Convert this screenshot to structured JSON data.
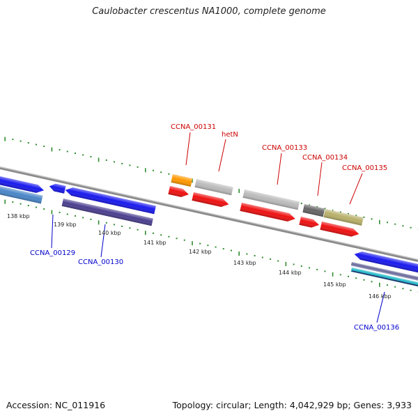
{
  "title": "Caulobacter crescentus NA1000, complete genome",
  "footer": {
    "accession": "Accession: NC_011916",
    "topology": "Topology: circular; Length: 4,042,929 bp; Genes: 3,933"
  },
  "scale_labels": [
    "138 kbp",
    "139 kbp",
    "140 kbp",
    "141 kbp",
    "142 kbp",
    "143 kbp",
    "144 kbp",
    "145 kbp",
    "146 kbp"
  ],
  "colors": {
    "forward_label": "#cc0000",
    "reverse_label": "#0000cc",
    "tick_green": "#2e8b2e",
    "backbone": "#888888"
  },
  "genes": [
    {
      "id": "g1",
      "color": "#1a1aee",
      "strand": "reverse"
    },
    {
      "id": "g2",
      "color": "#4a86c8",
      "strand": "reverse"
    },
    {
      "id": "CCNA_00129",
      "label": "CCNA_00129",
      "color": "#1a1aee",
      "strand": "reverse"
    },
    {
      "id": "g4",
      "color": "#1a1aee",
      "strand": "reverse"
    },
    {
      "id": "CCNA_00130",
      "label": "CCNA_00130",
      "color": "#4b3f8f",
      "strand": "reverse"
    },
    {
      "id": "CCNA_00131",
      "label": "CCNA_00131",
      "color": "#ff9900",
      "strand": "forward"
    },
    {
      "id": "g7",
      "color": "#ee1111",
      "strand": "forward"
    },
    {
      "id": "hetN",
      "label": "hetN",
      "color": "#bbbbbb",
      "strand": "forward"
    },
    {
      "id": "g9",
      "color": "#ee1111",
      "strand": "forward"
    },
    {
      "id": "CCNA_00133",
      "label": "CCNA_00133",
      "color": "#bbbbbb",
      "strand": "forward"
    },
    {
      "id": "g11",
      "color": "#ee1111",
      "strand": "forward"
    },
    {
      "id": "CCNA_00134",
      "label": "CCNA_00134",
      "color": "#666666",
      "strand": "forward"
    },
    {
      "id": "g13",
      "color": "#ee1111",
      "strand": "forward"
    },
    {
      "id": "CCNA_00135",
      "label": "CCNA_00135",
      "color": "#b8b06a",
      "strand": "forward"
    },
    {
      "id": "g15",
      "color": "#ee1111",
      "strand": "forward"
    },
    {
      "id": "g16",
      "color": "#1a1aee",
      "strand": "reverse"
    },
    {
      "id": "CCNA_00136",
      "label": "CCNA_00136",
      "color": "#6d6d9e",
      "strand": "reverse"
    },
    {
      "id": "g18",
      "color": "#22b8c8",
      "strand": "reverse"
    }
  ]
}
